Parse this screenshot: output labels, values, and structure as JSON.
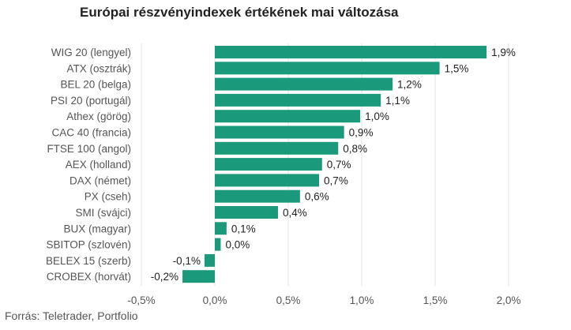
{
  "title": "Európai részvényindexek értékének mai változása",
  "source": "Forrás: Teletrader, Portfolio",
  "colors": {
    "bar": "#1a9a7a",
    "grid": "#e3e3e3"
  },
  "chart_data": {
    "type": "bar",
    "orientation": "horizontal",
    "title": "Európai részvényindexek értékének mai változása",
    "categories": [
      "WIG 20 (lengyel)",
      "ATX (osztrák)",
      "BEL 20 (belga)",
      "PSI 20 (portugál)",
      "Athex (görög)",
      "CAC 40 (francia)",
      "FTSE 100 (angol)",
      "AEX (holland)",
      "DAX (német)",
      "PX (cseh)",
      "SMI (svájci)",
      "BUX (magyar)",
      "SBITOP (szlovén)",
      "BELEX 15 (szerb)",
      "CROBEX (horvát)"
    ],
    "values": [
      1.85,
      1.53,
      1.21,
      1.13,
      0.99,
      0.88,
      0.84,
      0.73,
      0.71,
      0.58,
      0.43,
      0.08,
      0.04,
      -0.07,
      -0.22
    ],
    "value_labels": [
      "1,9%",
      "1,5%",
      "1,2%",
      "1,1%",
      "1,0%",
      "0,9%",
      "0,8%",
      "0,7%",
      "0,7%",
      "0,6%",
      "0,4%",
      "0,1%",
      "0,0%",
      "-0,1%",
      "-0,2%"
    ],
    "xlim": [
      -0.5,
      2.0
    ],
    "xticks": [
      -0.5,
      0,
      0.5,
      1.0,
      1.5,
      2.0
    ],
    "xtick_labels": [
      "-0,5%",
      "0,0%",
      "0,5%",
      "1,0%",
      "1,5%",
      "2,0%"
    ],
    "grid": true
  }
}
